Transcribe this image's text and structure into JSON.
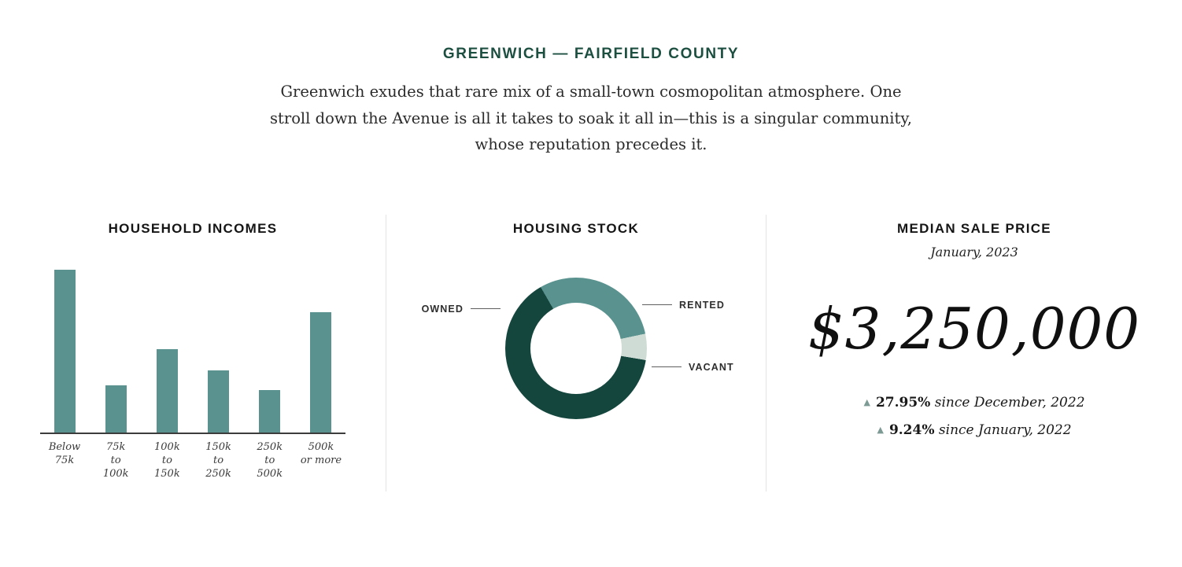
{
  "header": {
    "title": "GREENWICH — FAIRFIELD COUNTY",
    "description": "Greenwich exudes that rare mix of a small-town cosmopolitan atmosphere. One stroll down the Avenue is all it takes to soak it all in—this is a singular community, whose reputation precedes it."
  },
  "chart_data": [
    {
      "type": "bar",
      "title": "HOUSEHOLD INCOMES",
      "categories": [
        "Below 75k",
        "75k to 100k",
        "100k to 150k",
        "150k to 250k",
        "250k to 500k",
        "500k or more"
      ],
      "categories_lines": [
        [
          "Below",
          "75k"
        ],
        [
          "75k",
          "to",
          "100k"
        ],
        [
          "100k",
          "to",
          "150k"
        ],
        [
          "150k",
          "to",
          "250k"
        ],
        [
          "250k",
          "to",
          "500k"
        ],
        [
          "500k",
          "or more"
        ]
      ],
      "values": [
        100,
        29,
        51,
        38,
        26,
        74
      ],
      "ylim": [
        0,
        100
      ],
      "bar_color": "#59928e",
      "grid": false,
      "legend": false
    },
    {
      "type": "pie",
      "title": "HOUSING STOCK",
      "donut": true,
      "start_angle_deg": -30,
      "segments": [
        {
          "label": "RENTED",
          "value": 30,
          "color": "#59928e"
        },
        {
          "label": "VACANT",
          "value": 6,
          "color": "#cfdcd5"
        },
        {
          "label": "OWNED",
          "value": 64,
          "color": "#14463e"
        }
      ],
      "legend": "callout-labels"
    }
  ],
  "median": {
    "title": "MEDIAN SALE PRICE",
    "subtitle": "January, 2023",
    "price": "$3,250,000",
    "stats": [
      {
        "direction": "up",
        "pct": "27.95%",
        "text": " since December, 2022"
      },
      {
        "direction": "up",
        "pct": "9.24%",
        "text": " since January, 2022"
      }
    ]
  },
  "icons": {
    "up_triangle": "▲"
  },
  "colors": {
    "accent_green": "#1d4f41",
    "teal": "#59928e",
    "dark_green": "#14463e",
    "light_gray_green": "#cfdcd5",
    "divider": "#e4e4e4",
    "axis": "#3c3c3c",
    "triangle": "#7d9b94"
  }
}
